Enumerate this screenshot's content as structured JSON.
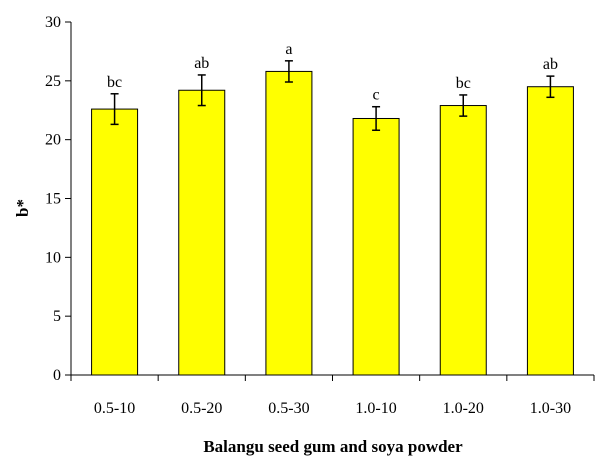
{
  "chart_data": {
    "type": "bar",
    "title": "",
    "xlabel": "Balangu seed gum and soya powder",
    "ylabel": "b*",
    "categories": [
      "0.5-10",
      "0.5-20",
      "0.5-30",
      "1.0-10",
      "1.0-20",
      "1.0-30"
    ],
    "values": [
      22.6,
      24.2,
      25.8,
      21.8,
      22.9,
      24.5
    ],
    "errors": [
      1.3,
      1.3,
      0.9,
      1.0,
      0.9,
      0.9
    ],
    "significance": [
      "bc",
      "ab",
      "a",
      "c",
      "bc",
      "ab"
    ],
    "ylim": [
      0,
      30
    ],
    "yticks": [
      0,
      5,
      10,
      15,
      20,
      25,
      30
    ],
    "grid": false,
    "legend": "none",
    "bar_color": "#ffff00",
    "bar_edge_color": "#000000"
  }
}
